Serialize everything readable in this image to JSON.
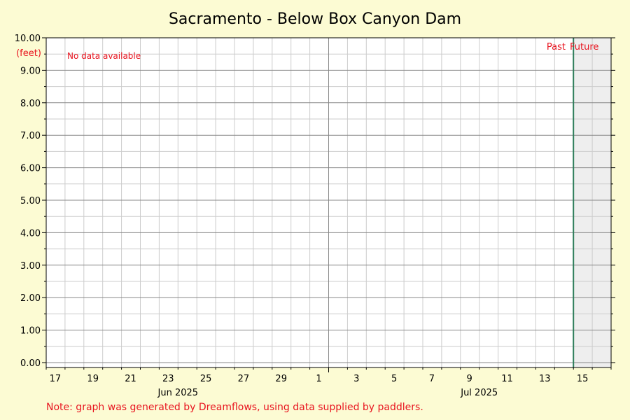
{
  "chart_data": {
    "type": "line",
    "title": "Sacramento - Below Box Canyon Dam",
    "ylabel": "(feet)",
    "ylim": [
      0,
      10
    ],
    "y_ticks": [
      "0.00",
      "1.00",
      "2.00",
      "3.00",
      "4.00",
      "5.00",
      "6.00",
      "7.00",
      "8.00",
      "9.00",
      "10.00"
    ],
    "x_range": [
      "2025-06-16",
      "2025-07-16"
    ],
    "x_day_ticks": [
      {
        "date": "2025-06-17",
        "label": "17"
      },
      {
        "date": "2025-06-19",
        "label": "19"
      },
      {
        "date": "2025-06-21",
        "label": "21"
      },
      {
        "date": "2025-06-23",
        "label": "23"
      },
      {
        "date": "2025-06-25",
        "label": "25"
      },
      {
        "date": "2025-06-27",
        "label": "27"
      },
      {
        "date": "2025-06-29",
        "label": "29"
      },
      {
        "date": "2025-07-01",
        "label": "1"
      },
      {
        "date": "2025-07-03",
        "label": "3"
      },
      {
        "date": "2025-07-05",
        "label": "5"
      },
      {
        "date": "2025-07-07",
        "label": "7"
      },
      {
        "date": "2025-07-09",
        "label": "9"
      },
      {
        "date": "2025-07-11",
        "label": "11"
      },
      {
        "date": "2025-07-13",
        "label": "13"
      },
      {
        "date": "2025-07-15",
        "label": "15"
      }
    ],
    "x_month_labels": [
      {
        "date": "2025-06-23",
        "label": "Jun 2025"
      },
      {
        "date": "2025-07-09",
        "label": "Jul 2025"
      }
    ],
    "month_boundary": "2025-07-01",
    "now_marker": "2025-07-14",
    "past_label": "Past",
    "future_label": "Future",
    "no_data_text": "No data available",
    "series": [],
    "grid": true
  },
  "footer": {
    "note": "Note: graph was generated by Dreamflows, using data supplied by paddlers."
  },
  "colors": {
    "background": "#fcfbd3",
    "plot_background": "#ffffff",
    "future_shade": "#eeeeee",
    "grid_minor": "#cccccc",
    "grid_major": "#888888",
    "now_line": "#2e7d5b",
    "annotation_text": "#e8141f"
  }
}
